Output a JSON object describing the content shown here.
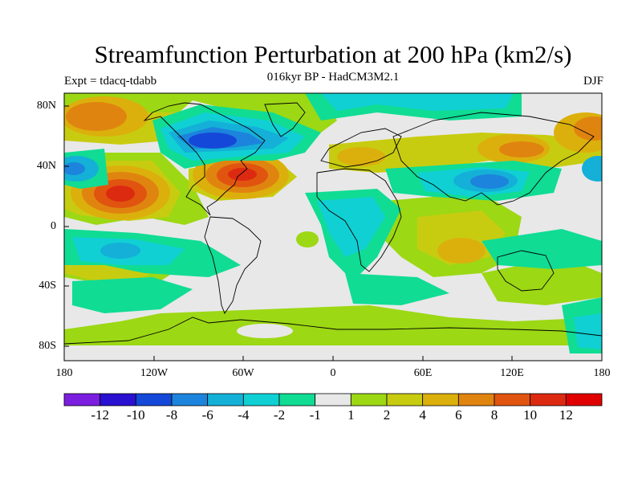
{
  "figure": {
    "title": "Streamfunction Perturbation at 200 hPa (km2/s)",
    "left_subtitle": "Expt = tdacq-tdabb",
    "center_subtitle": "016kyr BP - HadCM3M2.1",
    "right_subtitle": "DJF"
  },
  "axes": {
    "lat_labels": [
      "80N",
      "40N",
      "0",
      "40S",
      "80S"
    ],
    "lon_labels": [
      "180",
      "120W",
      "60W",
      "0",
      "60E",
      "120E",
      "180"
    ]
  },
  "colorbar": {
    "labels": [
      "-12",
      "-10",
      "-8",
      "-6",
      "-4",
      "-2",
      "-1",
      "1",
      "2",
      "4",
      "6",
      "8",
      "10",
      "12"
    ],
    "colors": [
      "#7b1ee0",
      "#2a10d0",
      "#1448d8",
      "#1c84dc",
      "#14b0d8",
      "#10d0d4",
      "#10dc94",
      "#e8e8e8",
      "#9cd814",
      "#c8cc10",
      "#dcb00c",
      "#e08410",
      "#e05410",
      "#dc2a10",
      "#e00000"
    ]
  },
  "colors": {
    "ocean_neutral": "#e8e8e8",
    "coastline": "#000000"
  }
}
